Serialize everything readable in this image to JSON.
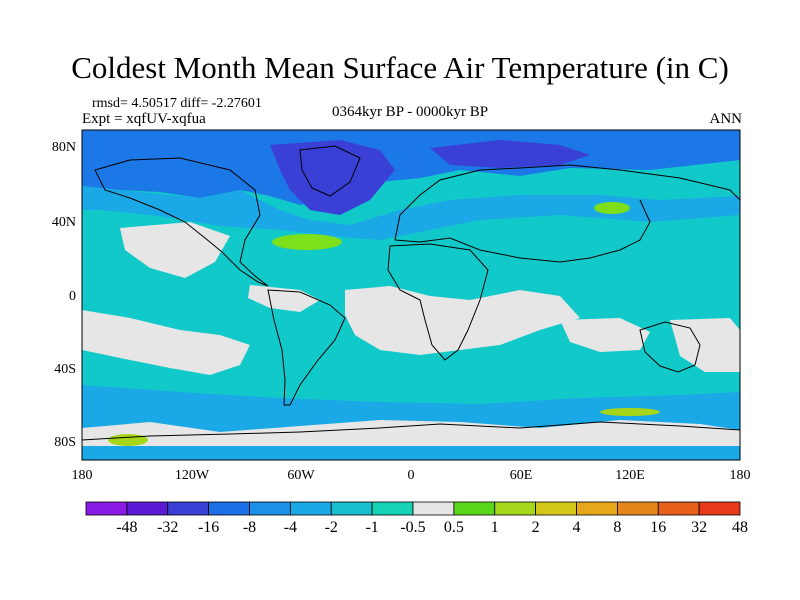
{
  "title": "Coldest Month Mean Surface Air Temperature (in C)",
  "stats_text": "rmsd= 4.50517 diff= -2.27601",
  "expt_text": "Expt = xqfUV-xqfua",
  "period_text": "0364kyr BP - 0000kyr BP",
  "season_text": "ANN",
  "map": {
    "lat_labels": [
      "80N",
      "40N",
      "0",
      "40S",
      "80S"
    ],
    "lon_labels": [
      "180",
      "120W",
      "60W",
      "0",
      "60E",
      "120E",
      "180"
    ],
    "colors": {
      "ocean_default": "#12c9c9",
      "neutral": "#e6e6e6",
      "cool_1": "#1aa9e6",
      "cool_2": "#1c78e6",
      "cool_3": "#3a3fd6",
      "warm_1": "#7ee01a"
    }
  },
  "colorbar": {
    "labels": [
      "-48",
      "-32",
      "-16",
      "-8",
      "-4",
      "-2",
      "-1",
      "-0.5",
      "0.5",
      "1",
      "2",
      "4",
      "8",
      "16",
      "32",
      "48"
    ],
    "colors": [
      "#8a1ae6",
      "#5a1ad6",
      "#3a3fd6",
      "#1c6fe6",
      "#1c90e6",
      "#1aa9e6",
      "#17bfd0",
      "#15d3b4",
      "#e6e6e6",
      "#5ad61a",
      "#a6d61a",
      "#d6c81a",
      "#e6a81a",
      "#e6861a",
      "#e6601a",
      "#e63a1a"
    ]
  }
}
